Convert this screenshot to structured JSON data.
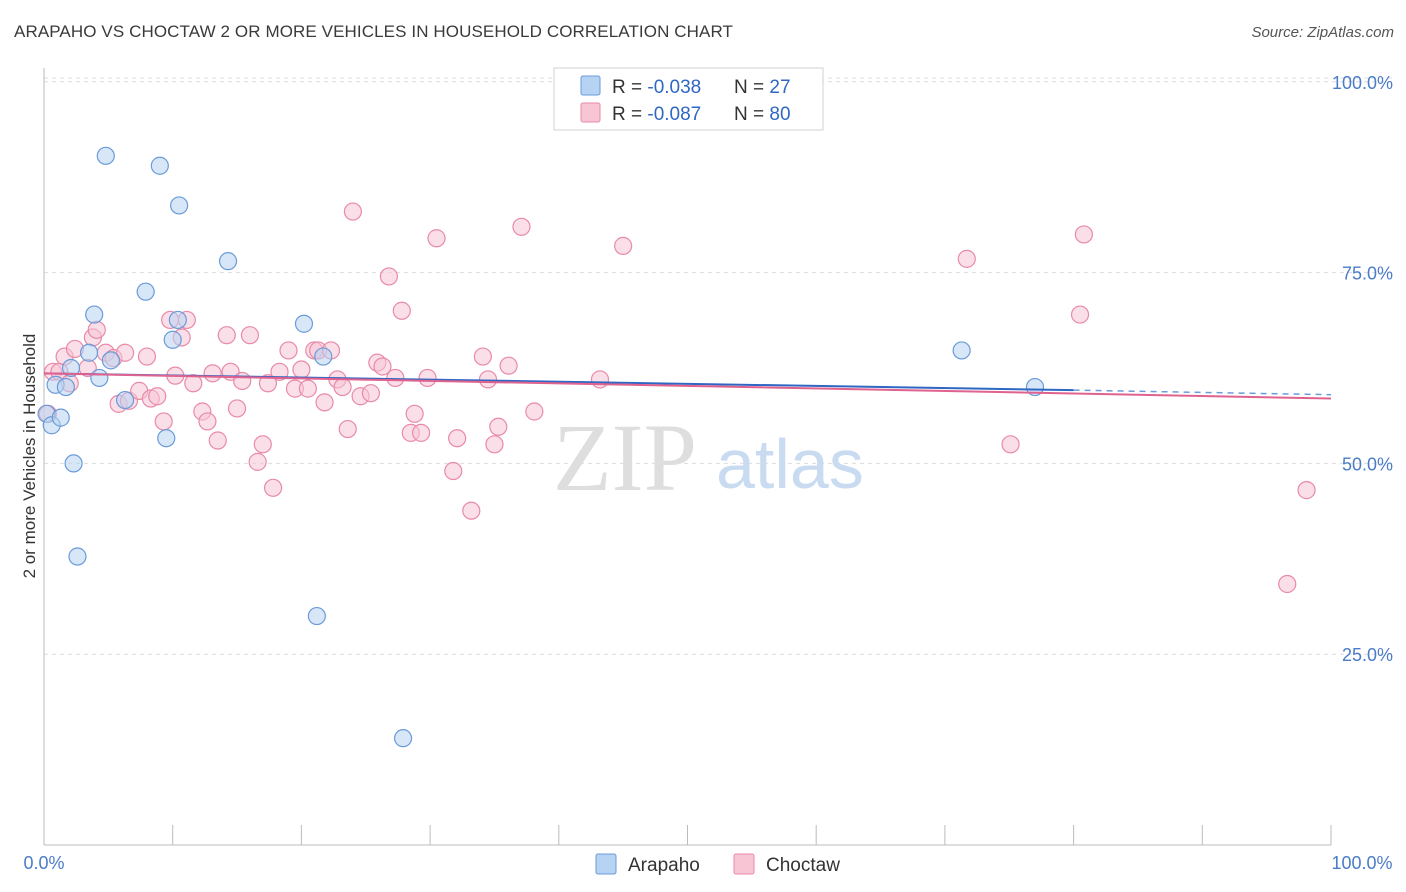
{
  "header": {
    "title": "ARAPAHO VS CHOCTAW 2 OR MORE VEHICLES IN HOUSEHOLD CORRELATION CHART",
    "source": "Source: ZipAtlas.com"
  },
  "watermark": {
    "zip": "ZIP",
    "atlas": "atlas"
  },
  "colors": {
    "arapaho_fill": "#b7d3f3",
    "arapaho_stroke": "#6b9bd8",
    "arapaho_line": "#2f67c4",
    "choctaw_fill": "#f8c5d5",
    "choctaw_stroke": "#e88aa8",
    "choctaw_line": "#e0628e",
    "tick_text": "#4a7cc7",
    "grid": "#dcdcdc"
  },
  "legend": {
    "arapaho": {
      "r_label": "R = ",
      "r_value": "-0.038",
      "n_label": "N = ",
      "n_value": "27"
    },
    "choctaw": {
      "r_label": "R = ",
      "r_value": "-0.087",
      "n_label": "N = ",
      "n_value": "80"
    }
  },
  "chart_data": {
    "type": "scatter",
    "title": "ARAPAHO VS CHOCTAW 2 OR MORE VEHICLES IN HOUSEHOLD CORRELATION CHART",
    "xlabel": "",
    "ylabel": "2 or more Vehicles in Household",
    "xlim": [
      0,
      100
    ],
    "ylim": [
      0,
      105
    ],
    "x_tick_labels": [
      "0.0%",
      "100.0%"
    ],
    "y_ticks": [
      25,
      50,
      75,
      100
    ],
    "y_tick_labels": [
      "25.0%",
      "50.0%",
      "75.0%",
      "100.0%"
    ],
    "grid": true,
    "legend_position": "top-center",
    "series": [
      {
        "name": "Arapaho",
        "r": -0.038,
        "n": 27,
        "trend": {
          "x_start": 0,
          "y_start": 61.8,
          "x_end": 80,
          "y_end": 59.6,
          "dashed_to_x": 100,
          "dashed_to_y": 59.0
        },
        "points": [
          [
            0.2,
            56.5
          ],
          [
            0.6,
            55.0
          ],
          [
            0.9,
            60.3
          ],
          [
            1.3,
            56.0
          ],
          [
            1.7,
            60.0
          ],
          [
            2.1,
            62.5
          ],
          [
            2.3,
            50.0
          ],
          [
            2.6,
            37.8
          ],
          [
            3.5,
            64.5
          ],
          [
            3.9,
            69.5
          ],
          [
            4.3,
            61.2
          ],
          [
            4.8,
            90.3
          ],
          [
            5.2,
            63.5
          ],
          [
            6.3,
            58.3
          ],
          [
            7.9,
            72.5
          ],
          [
            9.0,
            89.0
          ],
          [
            9.5,
            53.3
          ],
          [
            10.0,
            66.2
          ],
          [
            10.4,
            68.8
          ],
          [
            10.5,
            83.8
          ],
          [
            14.3,
            76.5
          ],
          [
            21.2,
            30.0
          ],
          [
            21.7,
            64.0
          ],
          [
            20.2,
            68.3
          ],
          [
            27.9,
            14.0
          ],
          [
            71.3,
            64.8
          ],
          [
            77.0,
            60.0
          ]
        ]
      },
      {
        "name": "Choctaw",
        "r": -0.087,
        "n": 80,
        "trend": {
          "x_start": 0,
          "y_start": 61.8,
          "x_end": 100,
          "y_end": 58.5
        },
        "points": [
          [
            0.3,
            56.5
          ],
          [
            0.7,
            62.0
          ],
          [
            1.2,
            62.0
          ],
          [
            1.6,
            64.0
          ],
          [
            2.0,
            60.5
          ],
          [
            2.4,
            65.0
          ],
          [
            3.4,
            62.5
          ],
          [
            3.8,
            66.5
          ],
          [
            4.1,
            67.5
          ],
          [
            4.8,
            64.5
          ],
          [
            5.4,
            63.8
          ],
          [
            5.8,
            57.8
          ],
          [
            6.3,
            64.5
          ],
          [
            6.6,
            58.2
          ],
          [
            7.4,
            59.5
          ],
          [
            8.0,
            64.0
          ],
          [
            8.3,
            58.5
          ],
          [
            8.8,
            58.8
          ],
          [
            9.3,
            55.5
          ],
          [
            9.8,
            68.8
          ],
          [
            10.2,
            61.5
          ],
          [
            10.7,
            66.5
          ],
          [
            11.1,
            68.8
          ],
          [
            11.6,
            60.5
          ],
          [
            12.3,
            56.8
          ],
          [
            12.7,
            55.5
          ],
          [
            13.1,
            61.8
          ],
          [
            13.5,
            53.0
          ],
          [
            14.2,
            66.8
          ],
          [
            14.5,
            62.0
          ],
          [
            15.0,
            57.2
          ],
          [
            15.4,
            60.8
          ],
          [
            16.0,
            66.8
          ],
          [
            16.6,
            50.2
          ],
          [
            17.0,
            52.5
          ],
          [
            17.4,
            60.5
          ],
          [
            17.8,
            46.8
          ],
          [
            18.3,
            62.0
          ],
          [
            19.0,
            64.8
          ],
          [
            19.5,
            59.8
          ],
          [
            20.0,
            62.3
          ],
          [
            20.5,
            59.8
          ],
          [
            21.0,
            64.8
          ],
          [
            21.3,
            64.8
          ],
          [
            21.8,
            58.0
          ],
          [
            22.3,
            64.8
          ],
          [
            22.8,
            61.0
          ],
          [
            23.2,
            60.0
          ],
          [
            23.6,
            54.5
          ],
          [
            24.0,
            83.0
          ],
          [
            24.6,
            58.8
          ],
          [
            25.4,
            59.2
          ],
          [
            25.9,
            63.2
          ],
          [
            26.3,
            62.7
          ],
          [
            26.8,
            74.5
          ],
          [
            27.3,
            61.2
          ],
          [
            27.8,
            70.0
          ],
          [
            28.5,
            54.0
          ],
          [
            28.8,
            56.5
          ],
          [
            29.3,
            54.0
          ],
          [
            29.8,
            61.2
          ],
          [
            30.5,
            79.5
          ],
          [
            31.8,
            49.0
          ],
          [
            32.1,
            53.3
          ],
          [
            33.2,
            43.8
          ],
          [
            34.1,
            64.0
          ],
          [
            34.5,
            61.0
          ],
          [
            35.0,
            52.5
          ],
          [
            35.3,
            54.8
          ],
          [
            36.1,
            62.8
          ],
          [
            37.1,
            81.0
          ],
          [
            38.1,
            56.8
          ],
          [
            43.2,
            61.0
          ],
          [
            45.0,
            78.5
          ],
          [
            71.7,
            76.8
          ],
          [
            75.1,
            52.5
          ],
          [
            80.5,
            69.5
          ],
          [
            80.8,
            80.0
          ],
          [
            96.6,
            34.2
          ],
          [
            98.1,
            46.5
          ]
        ]
      }
    ]
  }
}
